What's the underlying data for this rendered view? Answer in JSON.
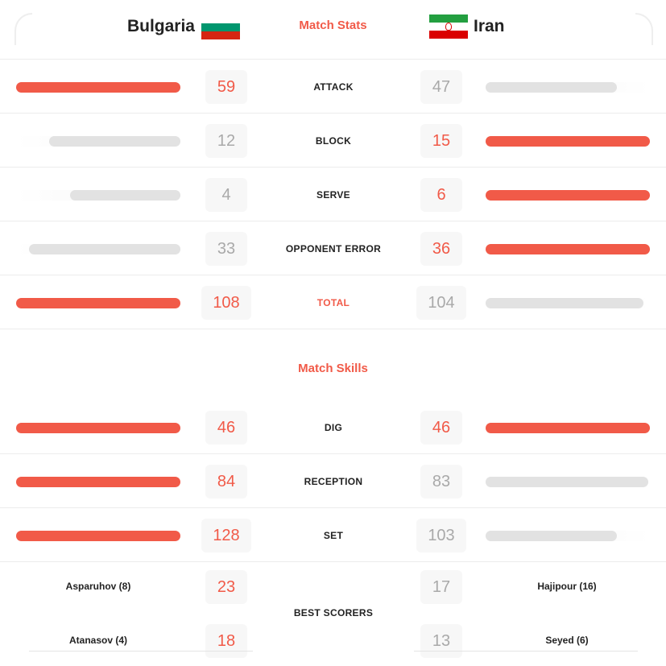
{
  "header": {
    "team_a": "Bulgaria",
    "team_b": "Iran",
    "title": "Match Stats",
    "flag_a_colors": [
      "#ffffff",
      "#00966e",
      "#d62612"
    ],
    "flag_b_colors": [
      "#239f40",
      "#ffffff",
      "#da0000"
    ]
  },
  "colors": {
    "accent": "#f15a48",
    "bar_grey": "#e2e2e2",
    "value_grey": "#a9a9a9"
  },
  "stats": [
    {
      "label": "ATTACK",
      "a": "59",
      "b": "47",
      "a_frac": 1.0,
      "b_frac": 0.8,
      "winner": "a"
    },
    {
      "label": "BLOCK",
      "a": "12",
      "b": "15",
      "a_frac": 0.8,
      "b_frac": 1.0,
      "winner": "b"
    },
    {
      "label": "SERVE",
      "a": "4",
      "b": "6",
      "a_frac": 0.67,
      "b_frac": 1.0,
      "winner": "b"
    },
    {
      "label": "OPPONENT ERROR",
      "a": "33",
      "b": "36",
      "a_frac": 0.92,
      "b_frac": 1.0,
      "winner": "b"
    },
    {
      "label": "TOTAL",
      "a": "108",
      "b": "104",
      "a_frac": 1.0,
      "b_frac": 0.96,
      "winner": "a"
    }
  ],
  "skills_title": "Match Skills",
  "skills": [
    {
      "label": "DIG",
      "a": "46",
      "b": "46",
      "a_frac": 1.0,
      "b_frac": 1.0,
      "winner": "both"
    },
    {
      "label": "RECEPTION",
      "a": "84",
      "b": "83",
      "a_frac": 1.0,
      "b_frac": 0.99,
      "winner": "a"
    },
    {
      "label": "SET",
      "a": "128",
      "b": "103",
      "a_frac": 1.0,
      "b_frac": 0.8,
      "winner": "a"
    }
  ],
  "best_scorers": {
    "label": "BEST SCORERS",
    "rows": [
      {
        "a_name": "Asparuhov (8)",
        "a": "23",
        "b": "17",
        "b_name": "Hajipour (16)"
      },
      {
        "a_name": "Atanasov (4)",
        "a": "18",
        "b": "13",
        "b_name": "Seyed (6)"
      }
    ]
  }
}
